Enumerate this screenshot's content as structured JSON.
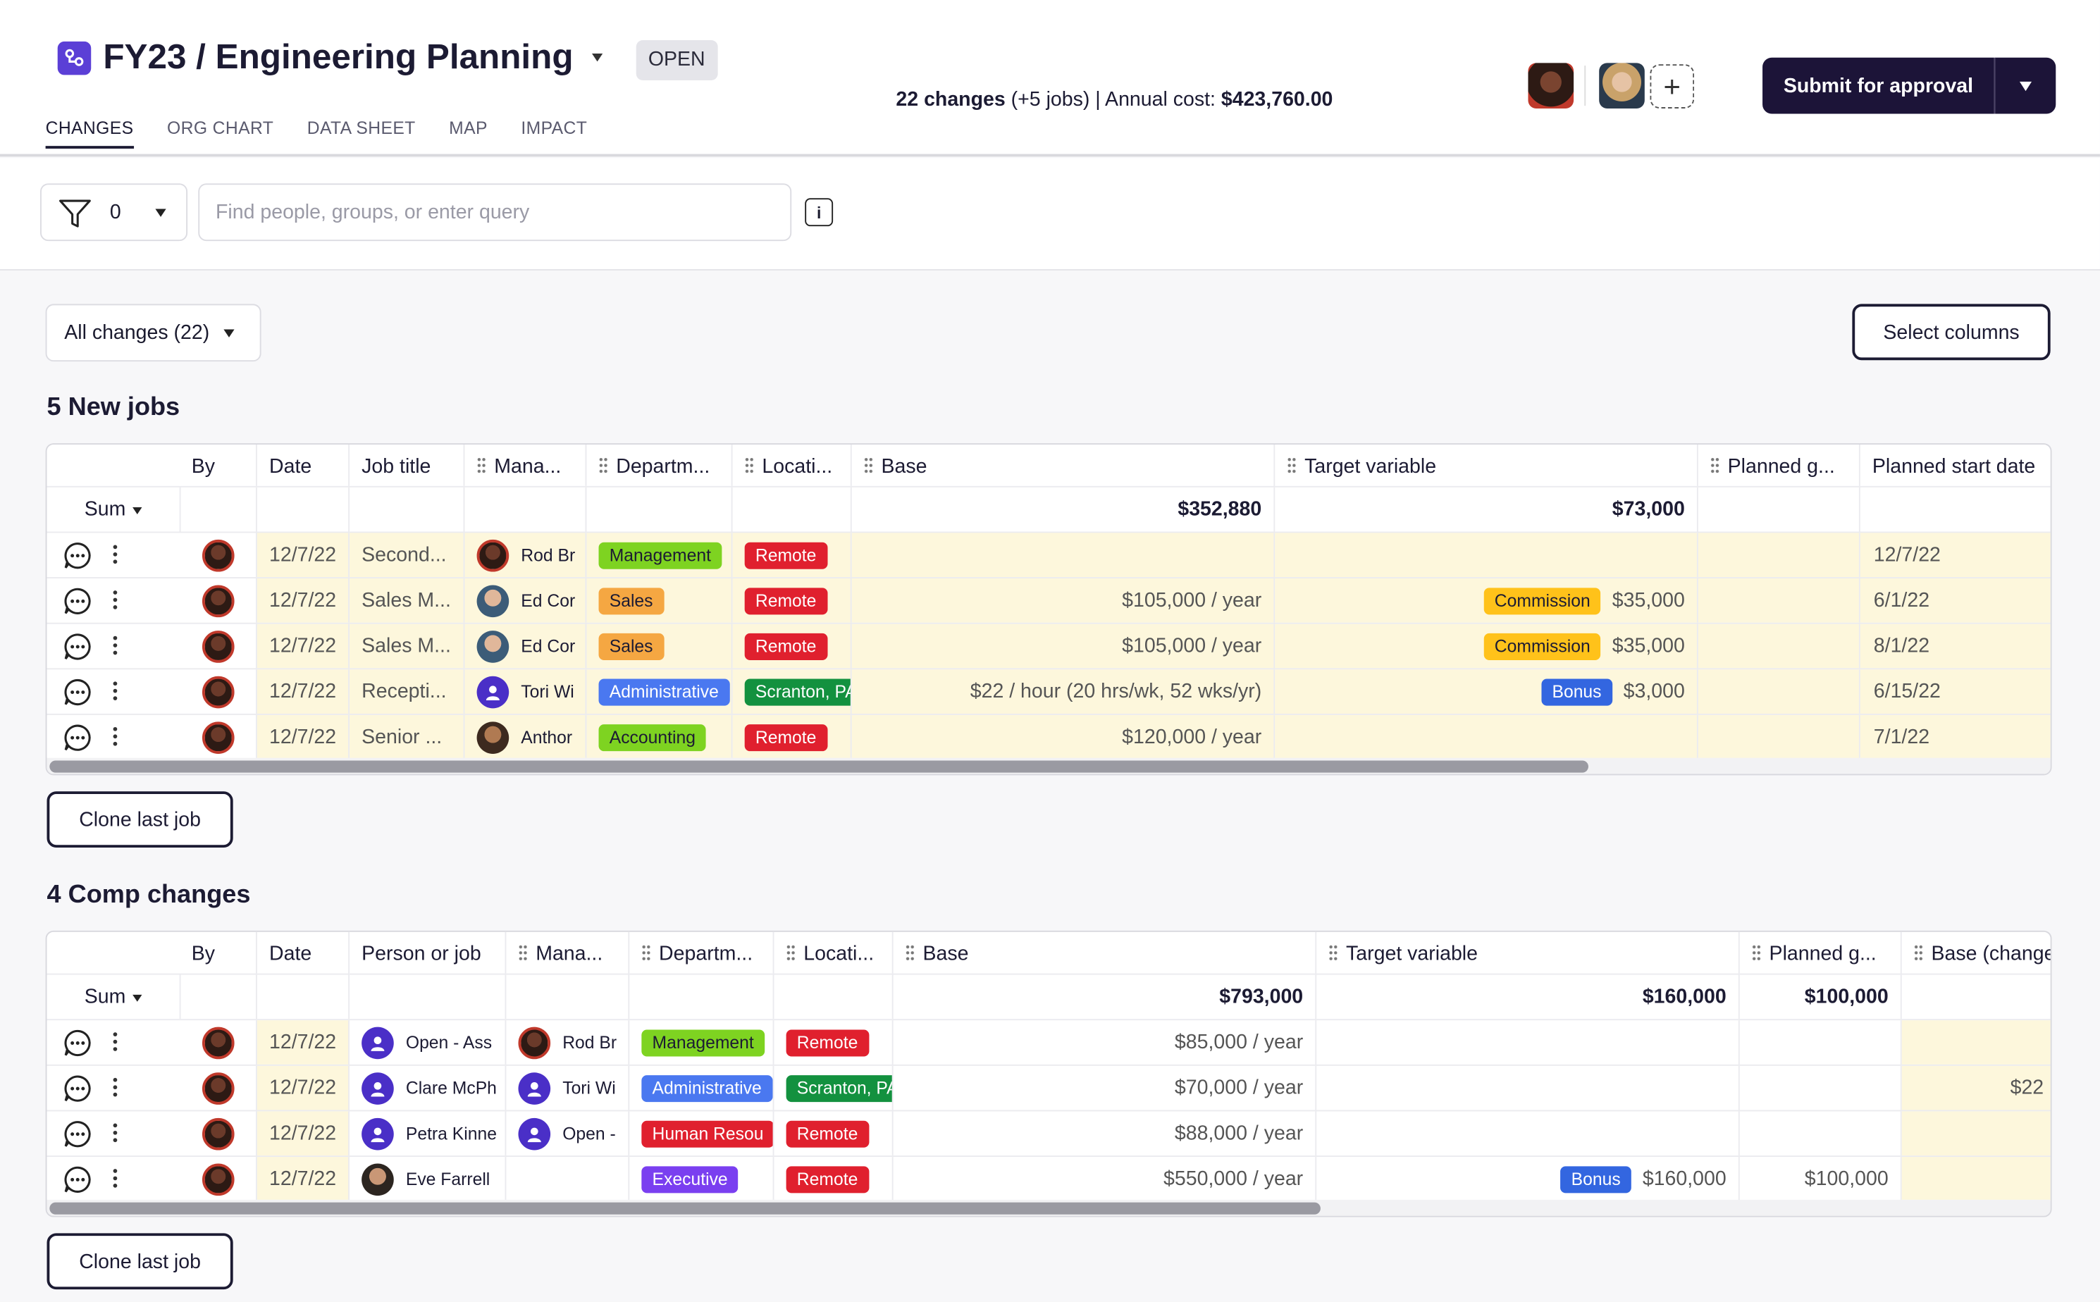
{
  "header": {
    "title": "FY23 / Engineering Planning",
    "status": "OPEN",
    "summary_changes": "22 changes",
    "summary_jobs": "(+5 jobs)",
    "summary_sep": " | Annual cost: ",
    "summary_cost": "$423,760.00",
    "submit_label": "Submit for approval",
    "tabs": [
      "CHANGES",
      "ORG CHART",
      "DATA SHEET",
      "MAP",
      "IMPACT"
    ],
    "active_tab": "CHANGES"
  },
  "filter": {
    "count": "0",
    "search_placeholder": "Find people, groups, or enter query"
  },
  "toolbar": {
    "all_changes": "All changes (22)",
    "select_columns": "Select columns"
  },
  "new_jobs": {
    "title": "5 New jobs",
    "headers": [
      "By",
      "Date",
      "Job title",
      "Mana...",
      "Departm...",
      "Locati...",
      "Base",
      "Target variable",
      "Planned g...",
      "Planned start date"
    ],
    "sum_label": "Sum",
    "sum_base": "$352,880",
    "sum_target": "$73,000",
    "rows": [
      {
        "date": "12/7/22",
        "job": "Second...",
        "manager": "Rod Br",
        "dept": "Management",
        "dept_color": "green",
        "loc": "Remote",
        "loc_color": "red",
        "base": "",
        "target_tag": "",
        "target": "",
        "start": "12/7/22",
        "mgr_av": "dark"
      },
      {
        "date": "12/7/22",
        "job": "Sales M...",
        "manager": "Ed Cor",
        "dept": "Sales",
        "dept_color": "orange",
        "loc": "Remote",
        "loc_color": "red",
        "base": "$105,000 / year",
        "target_tag": "Commission",
        "target": "$35,000",
        "start": "6/1/22",
        "mgr_av": "light"
      },
      {
        "date": "12/7/22",
        "job": "Sales M...",
        "manager": "Ed Cor",
        "dept": "Sales",
        "dept_color": "orange",
        "loc": "Remote",
        "loc_color": "red",
        "base": "$105,000 / year",
        "target_tag": "Commission",
        "target": "$35,000",
        "start": "8/1/22",
        "mgr_av": "light"
      },
      {
        "date": "12/7/22",
        "job": "Recepti...",
        "manager": "Tori Wi",
        "dept": "Administrative",
        "dept_color": "blue",
        "loc": "Scranton, PA",
        "loc_color": "dgreen",
        "base": "$22 / hour (20 hrs/wk, 52 wks/yr)",
        "target_tag": "Bonus",
        "target": "$3,000",
        "start": "6/15/22",
        "mgr_av": "person"
      },
      {
        "date": "12/7/22",
        "job": "Senior ...",
        "manager": "Anthor",
        "dept": "Accounting",
        "dept_color": "green",
        "loc": "Remote",
        "loc_color": "red",
        "base": "$120,000 / year",
        "target_tag": "",
        "target": "",
        "start": "7/1/22",
        "mgr_av": "tan"
      }
    ],
    "clone_label": "Clone last job"
  },
  "comp_changes": {
    "title": "4 Comp changes",
    "headers": [
      "By",
      "Date",
      "Person or job",
      "Mana...",
      "Departm...",
      "Locati...",
      "Base",
      "Target variable",
      "Planned g...",
      "Base (change"
    ],
    "sum_label": "Sum",
    "sum_base": "$793,000",
    "sum_target": "$160,000",
    "sum_planned": "$100,000",
    "rows": [
      {
        "date": "12/7/22",
        "person": "Open - Ass",
        "person_av": "person",
        "manager": "Rod Br",
        "mgr_av": "dark",
        "dept": "Management",
        "dept_color": "green",
        "loc": "Remote",
        "loc_color": "red",
        "base": "$85,000 / year",
        "target_tag": "",
        "target": "",
        "planned": "",
        "base_change": ""
      },
      {
        "date": "12/7/22",
        "person": "Clare McPh",
        "person_av": "person",
        "manager": "Tori Wi",
        "mgr_av": "person",
        "dept": "Administrative",
        "dept_color": "blue",
        "loc": "Scranton, PA",
        "loc_color": "dgreen",
        "base": "$70,000 / year",
        "target_tag": "",
        "target": "",
        "planned": "",
        "base_change": "$22"
      },
      {
        "date": "12/7/22",
        "person": "Petra Kinne",
        "person_av": "person",
        "manager": "Open -",
        "mgr_av": "person",
        "dept": "Human Resou",
        "dept_color": "red",
        "loc": "Remote",
        "loc_color": "red",
        "base": "$88,000 / year",
        "target_tag": "",
        "target": "",
        "planned": "",
        "base_change": ""
      },
      {
        "date": "12/7/22",
        "person": "Eve Farrell",
        "person_av": "woman",
        "manager": "",
        "mgr_av": "",
        "dept": "Executive",
        "dept_color": "purple",
        "loc": "Remote",
        "loc_color": "red",
        "base": "$550,000 / year",
        "target_tag": "Bonus",
        "target": "$160,000",
        "planned": "$100,000",
        "base_change": ""
      }
    ],
    "clone_label": "Clone last job"
  },
  "colors": {
    "brand": "#5b3fd6",
    "primary_button": "#1c1438",
    "highlight_row": "#fdf7dc"
  },
  "icons": [
    "app-logo-icon",
    "chevron-down-icon",
    "filter-icon",
    "info-icon",
    "comment-icon",
    "kebab-icon",
    "plus-icon",
    "grip-icon"
  ]
}
